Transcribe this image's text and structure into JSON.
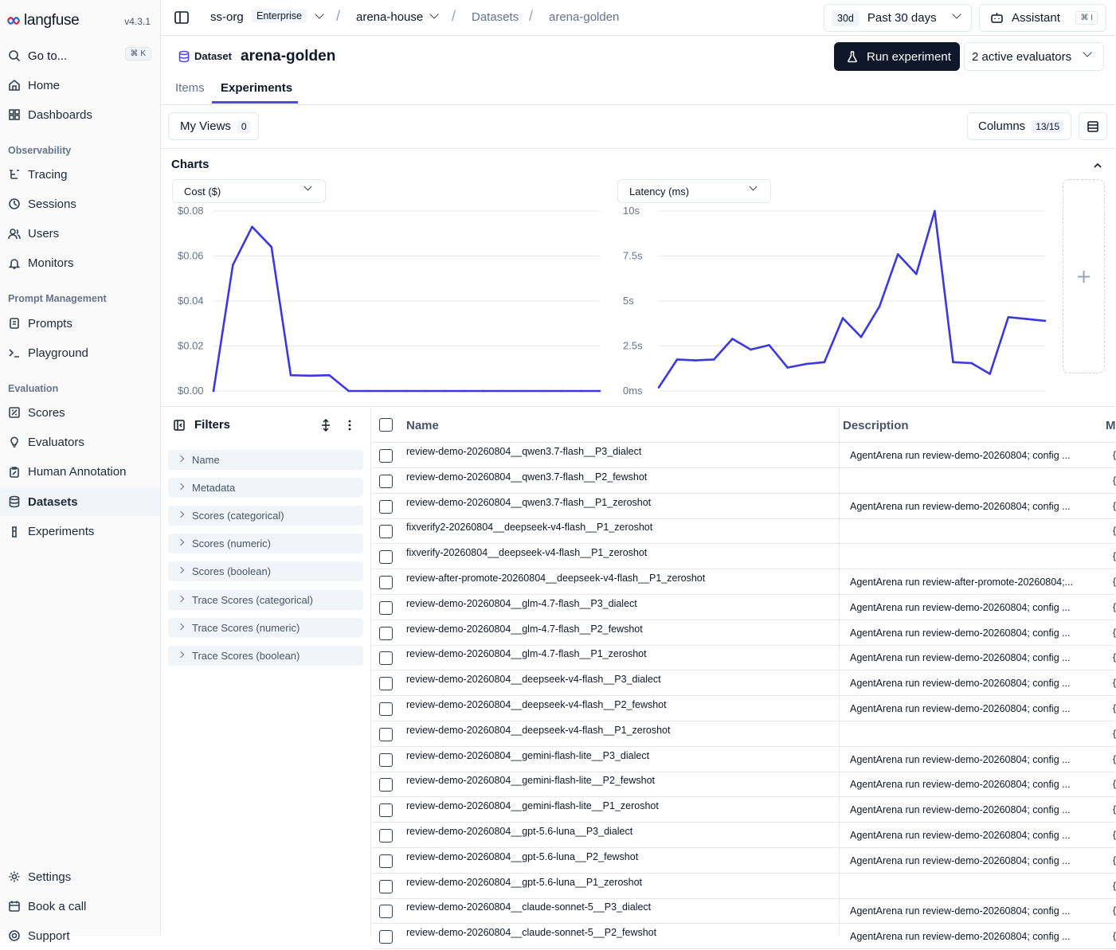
{
  "app": {
    "name": "langfuse",
    "version": "v4.3.1"
  },
  "sidebar": {
    "goto_label": "Go to...",
    "goto_shortcut": "⌘ K",
    "items_top": [
      {
        "label": "Home",
        "icon": "home-icon"
      },
      {
        "label": "Dashboards",
        "icon": "dashboard-icon"
      }
    ],
    "section_observability": "Observability",
    "items_observability": [
      {
        "label": "Tracing",
        "icon": "tracing-icon"
      },
      {
        "label": "Sessions",
        "icon": "clock-icon"
      },
      {
        "label": "Users",
        "icon": "users-icon"
      },
      {
        "label": "Monitors",
        "icon": "bell-icon"
      }
    ],
    "section_prompt": "Prompt Management",
    "items_prompt": [
      {
        "label": "Prompts",
        "icon": "prompt-file-icon"
      },
      {
        "label": "Playground",
        "icon": "terminal-icon"
      }
    ],
    "section_evaluation": "Evaluation",
    "items_evaluation": [
      {
        "label": "Scores",
        "icon": "scores-icon"
      },
      {
        "label": "Evaluators",
        "icon": "lightbulb-icon"
      },
      {
        "label": "Human Annotation",
        "icon": "clipboard-icon"
      },
      {
        "label": "Datasets",
        "icon": "database-icon",
        "active": true
      },
      {
        "label": "Experiments",
        "icon": "flask-icon"
      }
    ],
    "items_bottom": [
      {
        "label": "Settings",
        "icon": "gear-icon"
      },
      {
        "label": "Book a call",
        "icon": "calendar-icon"
      },
      {
        "label": "Support",
        "icon": "support-icon"
      }
    ]
  },
  "topbar": {
    "org": "ss-org",
    "org_plan": "Enterprise",
    "project": "arena-house",
    "section": "Datasets",
    "page": "arena-golden",
    "range_badge": "30d",
    "range_label": "Past 30 days",
    "assistant_label": "Assistant",
    "assistant_shortcut": "⌘ I"
  },
  "header": {
    "type_label": "Dataset",
    "title": "arena-golden",
    "run_button": "Run experiment",
    "evaluators_label": "2 active evaluators"
  },
  "tabs": [
    {
      "label": "Items"
    },
    {
      "label": "Experiments",
      "active": true
    }
  ],
  "views": {
    "label": "My Views",
    "count": "0",
    "columns_label": "Columns",
    "columns_count": "13/15"
  },
  "charts_section": {
    "title": "Charts"
  },
  "chart_data": [
    {
      "type": "line",
      "selector": "Cost ($)",
      "ylim": [
        0,
        0.08
      ],
      "yticks": [
        "$0.08",
        "$0.06",
        "$0.04",
        "$0.02",
        "$0.00"
      ],
      "color": "#3b38e0",
      "values": [
        0.0,
        0.056,
        0.073,
        0.064,
        0.007,
        0.0068,
        0.007,
        0.0,
        0.0,
        0.0,
        0.0,
        0.0,
        0.0,
        0.0,
        0.0,
        0.0,
        0.0,
        0.0,
        0.0,
        0.0,
        0.0
      ]
    },
    {
      "type": "line",
      "selector": "Latency (ms)",
      "ylim": [
        0,
        10
      ],
      "yticks": [
        "10s",
        "7.5s",
        "5s",
        "2.5s",
        "0ms"
      ],
      "color": "#3b38e0",
      "values": [
        0.2,
        1.75,
        1.7,
        1.75,
        2.9,
        2.3,
        2.55,
        1.3,
        1.5,
        1.6,
        4.05,
        3.0,
        4.7,
        7.6,
        6.5,
        10.0,
        1.6,
        1.55,
        0.95,
        4.1,
        4.0,
        3.9
      ]
    }
  ],
  "filters": {
    "title": "Filters",
    "items": [
      "Name",
      "Metadata",
      "Scores (categorical)",
      "Scores (numeric)",
      "Scores (boolean)",
      "Trace Scores (categorical)",
      "Trace Scores (numeric)",
      "Trace Scores (boolean)"
    ]
  },
  "table": {
    "headers": {
      "name": "Name",
      "description": "Description",
      "metadata": "M"
    },
    "rows": [
      {
        "name": "review-demo-20260804__qwen3.7-flash__P3_dialect",
        "description": "AgentArena run review-demo-20260804; config ..."
      },
      {
        "name": "review-demo-20260804__qwen3.7-flash__P2_fewshot",
        "description": ""
      },
      {
        "name": "review-demo-20260804__qwen3.7-flash__P1_zeroshot",
        "description": "AgentArena run review-demo-20260804; config ..."
      },
      {
        "name": "fixverify2-20260804__deepseek-v4-flash__P1_zeroshot",
        "description": ""
      },
      {
        "name": "fixverify-20260804__deepseek-v4-flash__P1_zeroshot",
        "description": ""
      },
      {
        "name": "review-after-promote-20260804__deepseek-v4-flash__P1_zeroshot",
        "description": "AgentArena run review-after-promote-20260804;..."
      },
      {
        "name": "review-demo-20260804__glm-4.7-flash__P3_dialect",
        "description": "AgentArena run review-demo-20260804; config ..."
      },
      {
        "name": "review-demo-20260804__glm-4.7-flash__P2_fewshot",
        "description": "AgentArena run review-demo-20260804; config ..."
      },
      {
        "name": "review-demo-20260804__glm-4.7-flash__P1_zeroshot",
        "description": "AgentArena run review-demo-20260804; config ..."
      },
      {
        "name": "review-demo-20260804__deepseek-v4-flash__P3_dialect",
        "description": "AgentArena run review-demo-20260804; config ..."
      },
      {
        "name": "review-demo-20260804__deepseek-v4-flash__P2_fewshot",
        "description": "AgentArena run review-demo-20260804; config ..."
      },
      {
        "name": "review-demo-20260804__deepseek-v4-flash__P1_zeroshot",
        "description": ""
      },
      {
        "name": "review-demo-20260804__gemini-flash-lite__P3_dialect",
        "description": "AgentArena run review-demo-20260804; config ..."
      },
      {
        "name": "review-demo-20260804__gemini-flash-lite__P2_fewshot",
        "description": "AgentArena run review-demo-20260804; config ..."
      },
      {
        "name": "review-demo-20260804__gemini-flash-lite__P1_zeroshot",
        "description": "AgentArena run review-demo-20260804; config ..."
      },
      {
        "name": "review-demo-20260804__gpt-5.6-luna__P3_dialect",
        "description": "AgentArena run review-demo-20260804; config ..."
      },
      {
        "name": "review-demo-20260804__gpt-5.6-luna__P2_fewshot",
        "description": "AgentArena run review-demo-20260804; config ..."
      },
      {
        "name": "review-demo-20260804__gpt-5.6-luna__P1_zeroshot",
        "description": ""
      },
      {
        "name": "review-demo-20260804__claude-sonnet-5__P3_dialect",
        "description": "AgentArena run review-demo-20260804; config ..."
      },
      {
        "name": "review-demo-20260804__claude-sonnet-5__P2_fewshot",
        "description": "AgentArena run review-demo-20260804; config ..."
      }
    ]
  }
}
